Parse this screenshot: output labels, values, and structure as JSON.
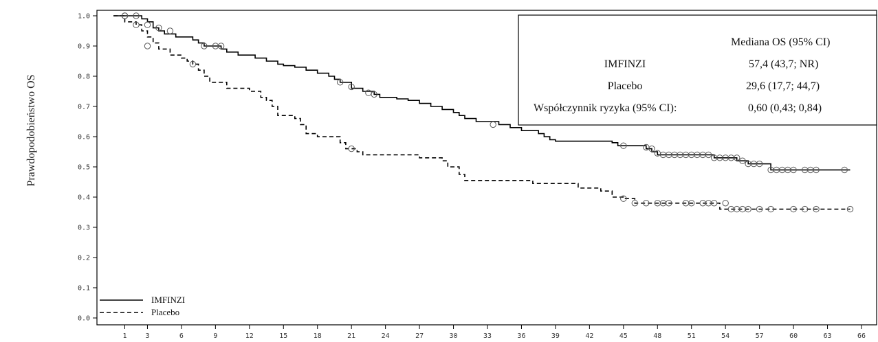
{
  "chart_data": {
    "type": "line",
    "title": "",
    "xlabel": "",
    "ylabel": "Prawdopodobieństwo OS",
    "xlim": [
      -1,
      67
    ],
    "ylim": [
      0.0,
      1.0
    ],
    "x_ticks": [
      1,
      3,
      6,
      9,
      12,
      15,
      18,
      21,
      24,
      27,
      30,
      33,
      36,
      39,
      42,
      45,
      48,
      51,
      54,
      57,
      60,
      63,
      66
    ],
    "y_ticks": [
      "0.0",
      "0.1",
      "0.2",
      "0.3",
      "0.4",
      "0.5",
      "0.6",
      "0.7",
      "0.8",
      "0.9",
      "1.0"
    ],
    "legend": {
      "placement": "bottom-left",
      "entries": [
        "IMFINZI",
        "Placebo"
      ]
    },
    "series": [
      {
        "name": "IMFINZI",
        "style": "solid",
        "color": "#000000",
        "points": [
          [
            0,
            1.0
          ],
          [
            2,
            1.0
          ],
          [
            2.5,
            0.99
          ],
          [
            3,
            0.98
          ],
          [
            3.5,
            0.96
          ],
          [
            4,
            0.95
          ],
          [
            4.5,
            0.94
          ],
          [
            5.5,
            0.93
          ],
          [
            7,
            0.92
          ],
          [
            7.5,
            0.91
          ],
          [
            8,
            0.9
          ],
          [
            9.5,
            0.89
          ],
          [
            10,
            0.88
          ],
          [
            11,
            0.87
          ],
          [
            12.5,
            0.86
          ],
          [
            13.5,
            0.85
          ],
          [
            14.5,
            0.84
          ],
          [
            15,
            0.835
          ],
          [
            16,
            0.83
          ],
          [
            17,
            0.82
          ],
          [
            18,
            0.81
          ],
          [
            19,
            0.8
          ],
          [
            19.5,
            0.79
          ],
          [
            20,
            0.78
          ],
          [
            21,
            0.76
          ],
          [
            22,
            0.75
          ],
          [
            23,
            0.74
          ],
          [
            23.5,
            0.73
          ],
          [
            25,
            0.725
          ],
          [
            26,
            0.72
          ],
          [
            27,
            0.71
          ],
          [
            28,
            0.7
          ],
          [
            29,
            0.69
          ],
          [
            30,
            0.68
          ],
          [
            30.5,
            0.67
          ],
          [
            31,
            0.66
          ],
          [
            32,
            0.65
          ],
          [
            34,
            0.64
          ],
          [
            35,
            0.63
          ],
          [
            36,
            0.62
          ],
          [
            37.5,
            0.61
          ],
          [
            38,
            0.6
          ],
          [
            38.5,
            0.59
          ],
          [
            39,
            0.585
          ],
          [
            44,
            0.58
          ],
          [
            44.5,
            0.57
          ],
          [
            47,
            0.56
          ],
          [
            47.5,
            0.55
          ],
          [
            48,
            0.54
          ],
          [
            53,
            0.53
          ],
          [
            55,
            0.52
          ],
          [
            56,
            0.51
          ],
          [
            58,
            0.49
          ],
          [
            65,
            0.49
          ]
        ],
        "censored": [
          [
            1,
            1.0
          ],
          [
            2,
            1.0
          ],
          [
            3,
            0.97
          ],
          [
            4,
            0.96
          ],
          [
            5,
            0.95
          ],
          [
            8,
            0.9
          ],
          [
            9,
            0.9
          ],
          [
            9.5,
            0.9
          ],
          [
            20,
            0.78
          ],
          [
            21,
            0.765
          ],
          [
            22.5,
            0.745
          ],
          [
            23,
            0.74
          ],
          [
            33.5,
            0.64
          ],
          [
            45,
            0.57
          ],
          [
            47,
            0.565
          ],
          [
            47.5,
            0.56
          ],
          [
            48,
            0.545
          ],
          [
            48.5,
            0.54
          ],
          [
            49,
            0.54
          ],
          [
            49.5,
            0.54
          ],
          [
            50,
            0.54
          ],
          [
            50.5,
            0.54
          ],
          [
            51,
            0.54
          ],
          [
            51.5,
            0.54
          ],
          [
            52,
            0.54
          ],
          [
            52.5,
            0.54
          ],
          [
            53,
            0.53
          ],
          [
            53.5,
            0.53
          ],
          [
            54,
            0.53
          ],
          [
            54.5,
            0.53
          ],
          [
            55,
            0.53
          ],
          [
            55.5,
            0.52
          ],
          [
            56,
            0.51
          ],
          [
            56.5,
            0.51
          ],
          [
            57,
            0.51
          ],
          [
            58,
            0.49
          ],
          [
            58.5,
            0.49
          ],
          [
            59,
            0.49
          ],
          [
            59.5,
            0.49
          ],
          [
            60,
            0.49
          ],
          [
            61,
            0.49
          ],
          [
            61.5,
            0.49
          ],
          [
            62,
            0.49
          ],
          [
            64.5,
            0.49
          ]
        ]
      },
      {
        "name": "Placebo",
        "style": "dashed",
        "color": "#000000",
        "points": [
          [
            0,
            1.0
          ],
          [
            1,
            0.98
          ],
          [
            2,
            0.97
          ],
          [
            2.5,
            0.95
          ],
          [
            3,
            0.93
          ],
          [
            3.5,
            0.91
          ],
          [
            4,
            0.89
          ],
          [
            5,
            0.87
          ],
          [
            6,
            0.86
          ],
          [
            6.5,
            0.85
          ],
          [
            7,
            0.84
          ],
          [
            7.5,
            0.82
          ],
          [
            8,
            0.8
          ],
          [
            8.5,
            0.78
          ],
          [
            10,
            0.76
          ],
          [
            12,
            0.75
          ],
          [
            13,
            0.73
          ],
          [
            13.5,
            0.72
          ],
          [
            14,
            0.7
          ],
          [
            14.5,
            0.67
          ],
          [
            16,
            0.66
          ],
          [
            16.5,
            0.64
          ],
          [
            17,
            0.61
          ],
          [
            18,
            0.6
          ],
          [
            20,
            0.58
          ],
          [
            20.5,
            0.56
          ],
          [
            21.5,
            0.55
          ],
          [
            22,
            0.54
          ],
          [
            27,
            0.53
          ],
          [
            29,
            0.52
          ],
          [
            29.5,
            0.5
          ],
          [
            30.5,
            0.475
          ],
          [
            31,
            0.455
          ],
          [
            37,
            0.445
          ],
          [
            41,
            0.43
          ],
          [
            43,
            0.42
          ],
          [
            44,
            0.4
          ],
          [
            45,
            0.395
          ],
          [
            46,
            0.38
          ],
          [
            53.5,
            0.36
          ],
          [
            65,
            0.36
          ]
        ],
        "censored": [
          [
            1,
            1.0
          ],
          [
            2,
            0.97
          ],
          [
            3,
            0.9
          ],
          [
            7,
            0.84
          ],
          [
            21,
            0.56
          ],
          [
            45,
            0.395
          ],
          [
            46,
            0.38
          ],
          [
            47,
            0.38
          ],
          [
            48,
            0.38
          ],
          [
            48.5,
            0.38
          ],
          [
            49,
            0.38
          ],
          [
            50.5,
            0.38
          ],
          [
            51,
            0.38
          ],
          [
            52,
            0.38
          ],
          [
            52.5,
            0.38
          ],
          [
            53,
            0.38
          ],
          [
            54,
            0.38
          ],
          [
            54.5,
            0.36
          ],
          [
            55,
            0.36
          ],
          [
            55.5,
            0.36
          ],
          [
            56,
            0.36
          ],
          [
            57,
            0.36
          ],
          [
            58,
            0.36
          ],
          [
            60,
            0.36
          ],
          [
            61,
            0.36
          ],
          [
            62,
            0.36
          ],
          [
            65,
            0.36
          ]
        ]
      }
    ],
    "annotation_box": {
      "header": "Mediana OS (95% CI)",
      "rows": [
        {
          "label": "IMFINZI",
          "value": "57,4 (43,7; NR)"
        },
        {
          "label": "Placebo",
          "value": "29,6 (17,7; 44,7)"
        },
        {
          "label": "Współczynnik ryzyka (95% CI):",
          "value": "0,60 (0,43; 0,84)"
        }
      ]
    }
  }
}
